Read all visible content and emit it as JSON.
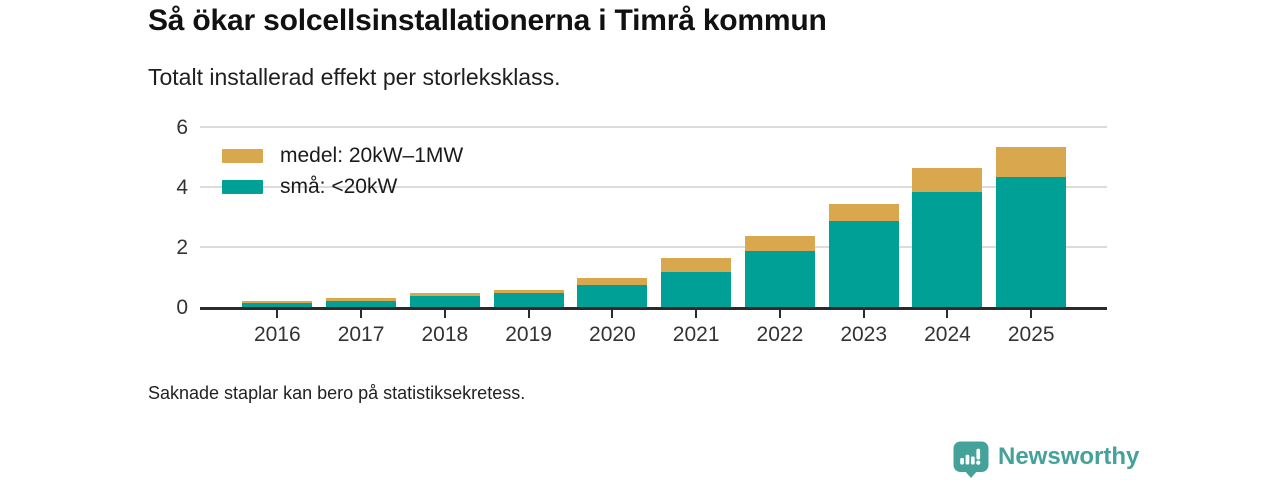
{
  "header": {
    "title": "Så ökar solcellsinstallationerna i Timrå kommun",
    "subtitle": "Totalt installerad effekt per storleksklass."
  },
  "chart_data": {
    "type": "bar",
    "stacked": true,
    "categories": [
      "2016",
      "2017",
      "2018",
      "2019",
      "2020",
      "2021",
      "2022",
      "2023",
      "2024",
      "2025"
    ],
    "series": [
      {
        "name": "medel: 20kW–1MW",
        "color": "#d9a84e",
        "values": [
          0.07,
          0.08,
          0.1,
          0.12,
          0.25,
          0.45,
          0.5,
          0.55,
          0.8,
          1.0
        ]
      },
      {
        "name": "små: <20kW",
        "color": "#00a096",
        "values": [
          0.2,
          0.28,
          0.44,
          0.53,
          0.8,
          1.25,
          1.95,
          2.95,
          3.9,
          4.4
        ]
      }
    ],
    "stack_order_bottom_to_top": [
      "små: <20kW",
      "medel: 20kW–1MW"
    ],
    "yticks": [
      0,
      2,
      4,
      6
    ],
    "ylim": [
      0,
      6
    ],
    "xlabel": "",
    "ylabel": "",
    "grid": "horizontal",
    "legend_position": "top-left-inside"
  },
  "footnote": "Saknade staplar kan bero på statistiksekretess.",
  "branding": {
    "name": "Newsworthy",
    "color": "#45a29b",
    "icon": "bar-chart-speech-bubble-icon"
  },
  "colors": {
    "background": "#ffffff",
    "gridline": "#dcdcdc",
    "axis_line": "#2b2b2b",
    "axis_text": "#333333",
    "title_text": "#111111"
  }
}
